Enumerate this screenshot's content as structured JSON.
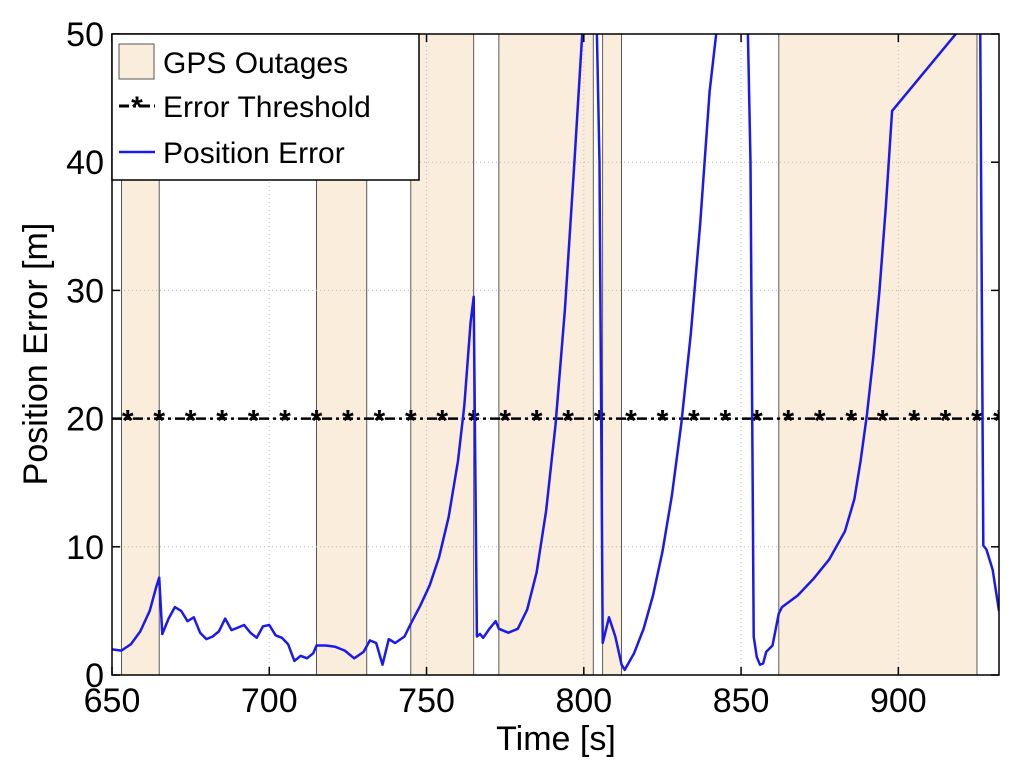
{
  "chart_data": {
    "type": "line",
    "title": "",
    "xlabel": "Time [s]",
    "ylabel": "Position Error [m]",
    "xlim": [
      650,
      932
    ],
    "ylim": [
      0,
      50
    ],
    "xticks": [
      650,
      700,
      750,
      800,
      850,
      900
    ],
    "yticks": [
      0,
      10,
      20,
      30,
      40,
      50
    ],
    "grid": true,
    "legend_position": "top-left",
    "legend": [
      {
        "label": "GPS Outages",
        "kind": "patch"
      },
      {
        "label": "Error Threshold",
        "kind": "dashdot-star"
      },
      {
        "label": "Position Error",
        "kind": "line"
      }
    ],
    "outages": [
      [
        653,
        665
      ],
      [
        715,
        731
      ],
      [
        745,
        765
      ],
      [
        773,
        803
      ],
      [
        806,
        812
      ],
      [
        862,
        925
      ]
    ],
    "threshold": {
      "name": "Error Threshold",
      "y": 20,
      "marker_x": [
        655,
        665,
        675,
        685,
        695,
        705,
        715,
        725,
        735,
        745,
        755,
        765,
        775,
        785,
        795,
        805,
        815,
        825,
        835,
        845,
        855,
        865,
        875,
        885,
        895,
        905,
        915,
        925,
        932
      ]
    },
    "series": [
      {
        "name": "Position Error",
        "x": [
          650,
          653,
          656,
          659,
          662,
          664,
          665,
          666,
          668,
          670,
          672,
          674,
          676,
          678,
          680,
          682,
          684,
          686,
          688,
          690,
          692,
          694,
          696,
          698,
          700,
          702,
          704,
          706,
          708,
          710,
          712,
          714,
          715,
          718,
          721,
          724,
          727,
          730,
          732,
          734,
          736,
          738,
          740,
          743,
          745,
          748,
          751,
          754,
          757,
          760,
          762,
          764,
          765,
          766,
          767,
          768,
          770,
          772,
          773,
          776,
          779,
          782,
          785,
          788,
          791,
          794,
          797,
          800,
          802,
          803,
          804,
          805,
          806,
          808,
          810,
          812,
          813,
          816,
          819,
          822,
          825,
          828,
          831,
          834,
          837,
          840,
          843,
          845,
          846,
          848,
          850,
          852,
          853,
          854,
          855,
          856,
          857,
          858,
          860,
          862,
          863,
          868,
          873,
          878,
          883,
          886,
          888,
          890,
          892,
          894,
          896,
          898,
          925,
          926,
          927,
          928,
          930,
          932
        ],
        "values": [
          2.0,
          1.9,
          2.4,
          3.4,
          5.0,
          6.8,
          7.6,
          3.2,
          4.4,
          5.3,
          5.0,
          4.2,
          4.5,
          3.3,
          2.8,
          3.0,
          3.4,
          4.4,
          3.5,
          3.7,
          3.9,
          3.3,
          2.9,
          3.8,
          3.9,
          3.1,
          2.9,
          2.4,
          1.1,
          1.5,
          1.3,
          1.7,
          2.3,
          2.3,
          2.2,
          1.9,
          1.3,
          1.8,
          2.7,
          2.5,
          0.8,
          2.8,
          2.5,
          3.0,
          4.0,
          5.4,
          7.0,
          9.2,
          12.3,
          16.7,
          21.0,
          27.5,
          29.5,
          3.0,
          3.2,
          2.9,
          3.6,
          4.2,
          3.6,
          3.3,
          3.6,
          5.1,
          8.0,
          12.8,
          19.5,
          28.5,
          40.0,
          52.0,
          52.0,
          52.0,
          52.0,
          40.0,
          2.5,
          4.5,
          3.0,
          0.8,
          0.4,
          1.7,
          3.6,
          6.2,
          9.6,
          14.0,
          19.6,
          26.6,
          35.2,
          45.5,
          52.0,
          52.0,
          52.0,
          52.0,
          52.0,
          52.0,
          40.0,
          3.0,
          1.4,
          0.8,
          0.9,
          1.8,
          2.3,
          4.8,
          5.3,
          6.2,
          7.5,
          9.0,
          11.2,
          13.7,
          16.7,
          20.3,
          24.7,
          30.0,
          36.5,
          44.0,
          52.0,
          52.0,
          10.1,
          9.8,
          8.2,
          5.0
        ]
      }
    ],
    "colors": {
      "outage_fill": "#fbeddb",
      "position_error": "#1a1aee",
      "threshold": "#000000",
      "grid": "#bdbdbd"
    }
  }
}
